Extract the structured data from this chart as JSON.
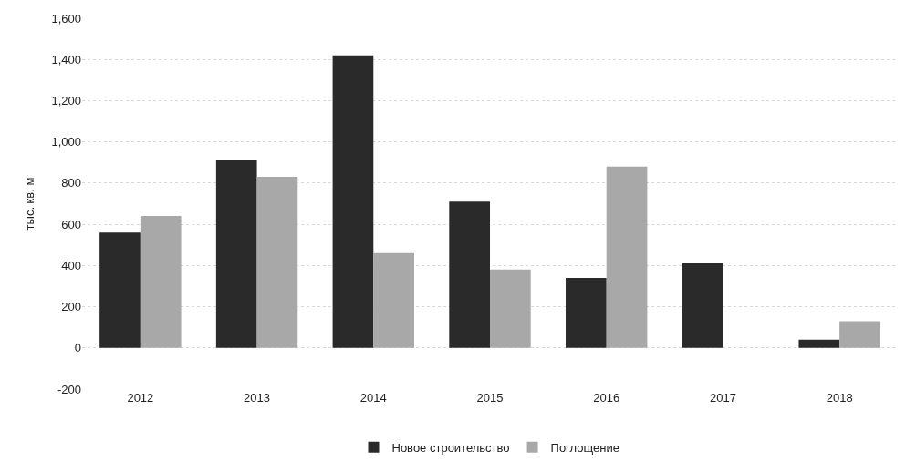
{
  "chart_data": {
    "type": "bar",
    "ylabel": "тыс. кв. м",
    "categories": [
      "2012",
      "2013",
      "2014",
      "2015",
      "2016",
      "2017",
      "2018"
    ],
    "series": [
      {
        "name": "Новое строительство",
        "color": "#2a2a2a",
        "values": [
          560,
          910,
          1420,
          710,
          340,
          410,
          40
        ]
      },
      {
        "name": "Поглощение",
        "color": "#a8a8a8",
        "values": [
          640,
          830,
          460,
          380,
          880,
          null,
          130
        ]
      }
    ],
    "ylim": [
      -200,
      1600
    ],
    "yticks": [
      {
        "value": -200,
        "label": "-200"
      },
      0,
      200,
      400,
      600,
      800,
      {
        "value": 1000,
        "label": "1,000"
      },
      {
        "value": 1200,
        "label": "1,200"
      },
      {
        "value": 1400,
        "label": "1,400"
      },
      {
        "value": 1600,
        "label": "1,600"
      }
    ],
    "grid": "y",
    "legend": "bottom"
  }
}
